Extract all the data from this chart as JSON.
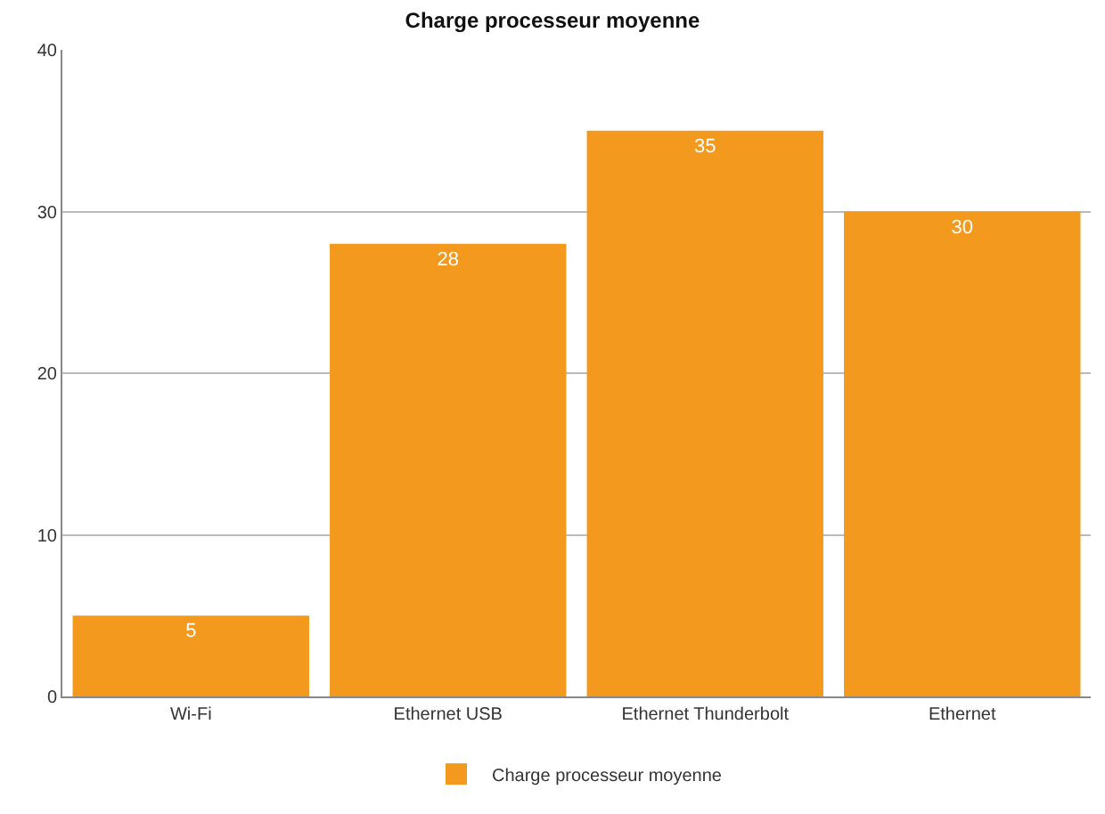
{
  "chart_data": {
    "type": "bar",
    "title": "Charge processeur moyenne",
    "categories": [
      "Wi-Fi",
      "Ethernet USB",
      "Ethernet Thunderbolt",
      "Ethernet"
    ],
    "series": [
      {
        "name": "Charge processeur moyenne",
        "color": "#f39a1e",
        "values": [
          5,
          28,
          35,
          30
        ]
      }
    ],
    "ylim": [
      0,
      40
    ],
    "yticks": [
      0,
      10,
      20,
      30,
      40
    ],
    "grid": "y",
    "legend": "bottom",
    "data_labels": true
  }
}
